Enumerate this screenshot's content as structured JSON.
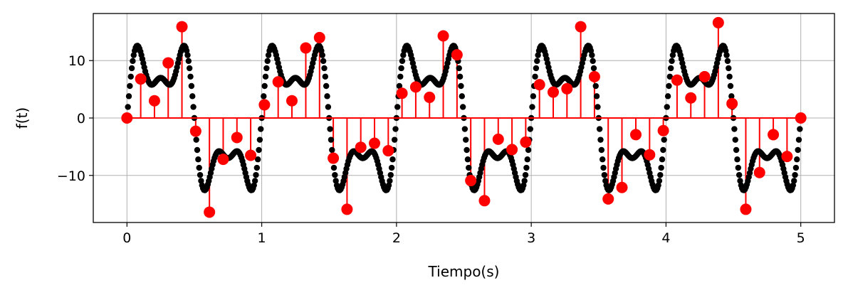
{
  "chart_data": {
    "type": "line",
    "title": "",
    "xlabel": "Tiempo(s)",
    "ylabel": "f(t)",
    "xlim": [
      -0.25,
      5.25
    ],
    "ylim": [
      -18.2,
      18.2
    ],
    "xticks": [
      0,
      1,
      2,
      3,
      4,
      5
    ],
    "xtick_labels": [
      "0",
      "1",
      "2",
      "3",
      "4",
      "5"
    ],
    "yticks": [
      -10,
      0,
      10
    ],
    "ytick_labels": [
      "−10",
      "0",
      "10"
    ],
    "grid": true,
    "legend": "none",
    "series": [
      {
        "kind": "continuous",
        "style": "dots",
        "color": "#000000",
        "period": 1,
        "t_end": 5,
        "components": [
          {
            "amplitude": 10,
            "frequency": 1
          },
          {
            "amplitude": 6,
            "frequency": 3
          },
          {
            "amplitude": 3,
            "frequency": 5
          }
        ]
      },
      {
        "kind": "stem",
        "color": "#ff0000",
        "x": [
          0,
          0.102,
          0.204,
          0.306,
          0.408,
          0.51,
          0.612,
          0.714,
          0.816,
          0.918,
          1.02,
          1.122,
          1.224,
          1.327,
          1.429,
          1.531,
          1.633,
          1.735,
          1.837,
          1.939,
          2.041,
          2.143,
          2.245,
          2.347,
          2.449,
          2.551,
          2.653,
          2.755,
          2.857,
          2.959,
          3.061,
          3.163,
          3.265,
          3.367,
          3.469,
          3.571,
          3.673,
          3.776,
          3.878,
          3.98,
          4.082,
          4.184,
          4.286,
          4.388,
          4.49,
          4.592,
          4.694,
          4.796,
          4.898,
          5.0
        ],
        "y": [
          0,
          6.8,
          3.0,
          9.6,
          15.9,
          -2.3,
          -16.4,
          -7.2,
          -3.4,
          -6.5,
          2.3,
          6.3,
          3.0,
          12.2,
          14.0,
          -7.0,
          -15.9,
          -5.1,
          -4.4,
          -5.7,
          4.3,
          5.4,
          3.6,
          14.3,
          11.0,
          -10.9,
          -14.4,
          -3.7,
          -5.5,
          -4.2,
          5.8,
          4.5,
          5.1,
          15.9,
          7.2,
          -14.1,
          -12.1,
          -2.9,
          -6.4,
          -2.2,
          6.6,
          3.5,
          7.2,
          16.6,
          2.5,
          -15.9,
          -9.5,
          -2.9,
          -6.7,
          0
        ]
      }
    ]
  }
}
